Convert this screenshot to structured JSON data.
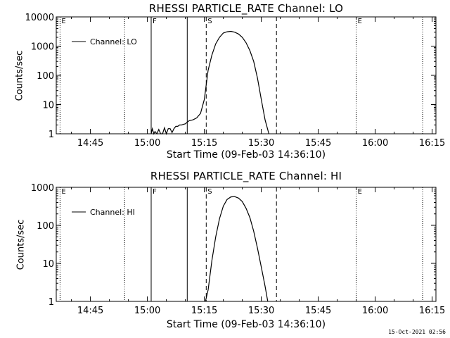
{
  "footer": {
    "timestamp": "15-Oct-2021 02:56"
  },
  "chart_data": [
    {
      "type": "line",
      "title": "RHESSI PARTICLE_RATE Channel: LO",
      "xlabel": "Start Time (09-Feb-03 14:36:10)",
      "ylabel": "Counts/sec",
      "yscale": "log",
      "xlim": [
        "14:36",
        "16:16"
      ],
      "ylim": [
        1,
        10000
      ],
      "xticks": [
        "14:45",
        "15:00",
        "15:15",
        "15:30",
        "15:45",
        "16:00",
        "16:15"
      ],
      "yticks": [
        "1",
        "10",
        "100",
        "1000",
        "10000"
      ],
      "legend": {
        "position": "top-left",
        "entries": [
          "Channel: LO"
        ]
      },
      "markers": [
        {
          "style": "dotted",
          "x": "14:37",
          "label": "E"
        },
        {
          "style": "dotted",
          "x": "14:54",
          "label": ""
        },
        {
          "style": "solid",
          "x": "15:01",
          "label": "F"
        },
        {
          "style": "solid",
          "x": "15:10.5",
          "label": ""
        },
        {
          "style": "dashed",
          "x": "15:15.5",
          "label": "S"
        },
        {
          "style": "dashed",
          "x": "15:34",
          "label": ""
        },
        {
          "style": "dotted",
          "x": "15:55",
          "label": "E"
        },
        {
          "style": "dotted",
          "x": "16:12.5",
          "label": ""
        }
      ],
      "series": [
        {
          "name": "Channel: LO",
          "x": [
            "15:01",
            "15:01.3",
            "15:01.7",
            "15:02",
            "15:02.5",
            "15:03",
            "15:03.5",
            "15:04",
            "15:04.5",
            "15:05",
            "15:05.5",
            "15:06",
            "15:06.5",
            "15:07",
            "15:07.5",
            "15:08",
            "15:08.5",
            "15:09",
            "15:09.5",
            "15:10",
            "15:10.5",
            "15:11",
            "15:12",
            "15:13",
            "15:14",
            "15:15",
            "15:16",
            "15:17",
            "15:18",
            "15:19",
            "15:20",
            "15:21",
            "15:22",
            "15:23",
            "15:24",
            "15:25",
            "15:26",
            "15:27",
            "15:28",
            "15:29",
            "15:30",
            "15:31",
            "15:32"
          ],
          "values": [
            1,
            1.5,
            1,
            1.2,
            1,
            1.4,
            1,
            1,
            1.6,
            1,
            1.5,
            1.5,
            1.1,
            1.5,
            1.8,
            1.8,
            2,
            2,
            2.1,
            2.2,
            2.5,
            2.8,
            3,
            3.5,
            5,
            15,
            150,
            500,
            1200,
            2000,
            2800,
            3100,
            3200,
            3000,
            2600,
            2000,
            1300,
            700,
            300,
            80,
            15,
            3,
            1
          ]
        }
      ]
    },
    {
      "type": "line",
      "title": "RHESSI PARTICLE_RATE Channel: HI",
      "xlabel": "Start Time (09-Feb-03 14:36:10)",
      "ylabel": "Counts/sec",
      "yscale": "log",
      "xlim": [
        "14:36",
        "16:16"
      ],
      "ylim": [
        1,
        1000
      ],
      "xticks": [
        "14:45",
        "15:00",
        "15:15",
        "15:30",
        "15:45",
        "16:00",
        "16:15"
      ],
      "yticks": [
        "1",
        "10",
        "100",
        "1000"
      ],
      "legend": {
        "position": "top-left",
        "entries": [
          "Channel: HI"
        ]
      },
      "markers": [
        {
          "style": "dotted",
          "x": "14:37",
          "label": "E"
        },
        {
          "style": "dotted",
          "x": "14:54",
          "label": ""
        },
        {
          "style": "solid",
          "x": "15:01",
          "label": "F"
        },
        {
          "style": "solid",
          "x": "15:10.5",
          "label": ""
        },
        {
          "style": "dashed",
          "x": "15:15.5",
          "label": "S"
        },
        {
          "style": "dashed",
          "x": "15:34",
          "label": ""
        },
        {
          "style": "dotted",
          "x": "15:55",
          "label": "E"
        },
        {
          "style": "dotted",
          "x": "16:12.5",
          "label": ""
        }
      ],
      "series": [
        {
          "name": "Channel: HI",
          "x": [
            "15:15.3",
            "15:16",
            "15:17",
            "15:18",
            "15:19",
            "15:20",
            "15:21",
            "15:22",
            "15:23",
            "15:24",
            "15:25",
            "15:26",
            "15:27",
            "15:28",
            "15:29",
            "15:30",
            "15:31",
            "15:31.7"
          ],
          "values": [
            1,
            2,
            12,
            50,
            150,
            320,
            480,
            560,
            570,
            520,
            420,
            280,
            160,
            70,
            25,
            8,
            2.5,
            1
          ]
        }
      ]
    }
  ]
}
